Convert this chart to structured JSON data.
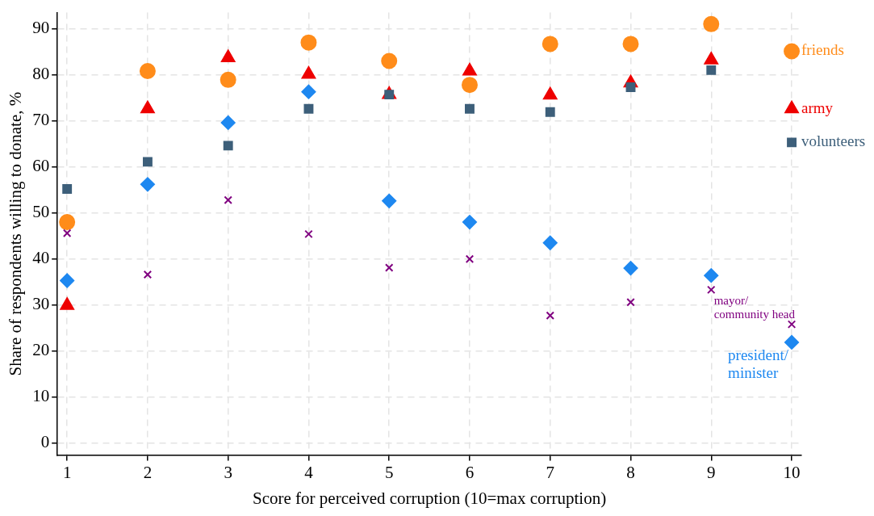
{
  "chart_data": {
    "type": "scatter",
    "xlabel": "Score for perceived corruption (10=max corruption)",
    "ylabel": "Share of respondents willing to donate, %",
    "x": [
      1,
      2,
      3,
      4,
      5,
      6,
      7,
      8,
      9,
      10
    ],
    "series": [
      {
        "name": "friends",
        "color": "#ff8c1a",
        "marker": "circle",
        "values": [
          48.0,
          80.8,
          78.9,
          87.0,
          83.0,
          77.8,
          86.7,
          86.7,
          91.0,
          85.1
        ]
      },
      {
        "name": "army",
        "color": "#ee0000",
        "marker": "triangle",
        "values": [
          29.9,
          72.6,
          83.7,
          80.1,
          75.7,
          80.8,
          75.6,
          78.2,
          83.2,
          72.6
        ]
      },
      {
        "name": "volunteers",
        "color": "#3d5f7a",
        "marker": "square",
        "values": [
          55.2,
          61.1,
          64.6,
          72.6,
          75.7,
          72.6,
          71.9,
          77.3,
          81.0,
          65.3
        ]
      },
      {
        "name": "mayor/\ncommunity head",
        "color": "#800080",
        "marker": "cross",
        "values": [
          45.6,
          36.6,
          52.8,
          45.4,
          38.1,
          40.0,
          27.7,
          30.6,
          33.3,
          25.8
        ]
      },
      {
        "name": "president/\nminister",
        "color": "#1e88f0",
        "marker": "diamond",
        "values": [
          35.3,
          56.2,
          69.6,
          76.3,
          52.6,
          48.0,
          43.5,
          38.0,
          36.4,
          21.9
        ]
      }
    ],
    "xlim": [
      0.88,
      10.12
    ],
    "xticks": [
      1,
      2,
      3,
      4,
      5,
      6,
      7,
      8,
      9,
      10
    ],
    "ylim": [
      -2.6,
      93.5
    ],
    "yticks": [
      0,
      10,
      20,
      30,
      40,
      50,
      60,
      70,
      80,
      90
    ],
    "grid": true,
    "legend": false
  }
}
